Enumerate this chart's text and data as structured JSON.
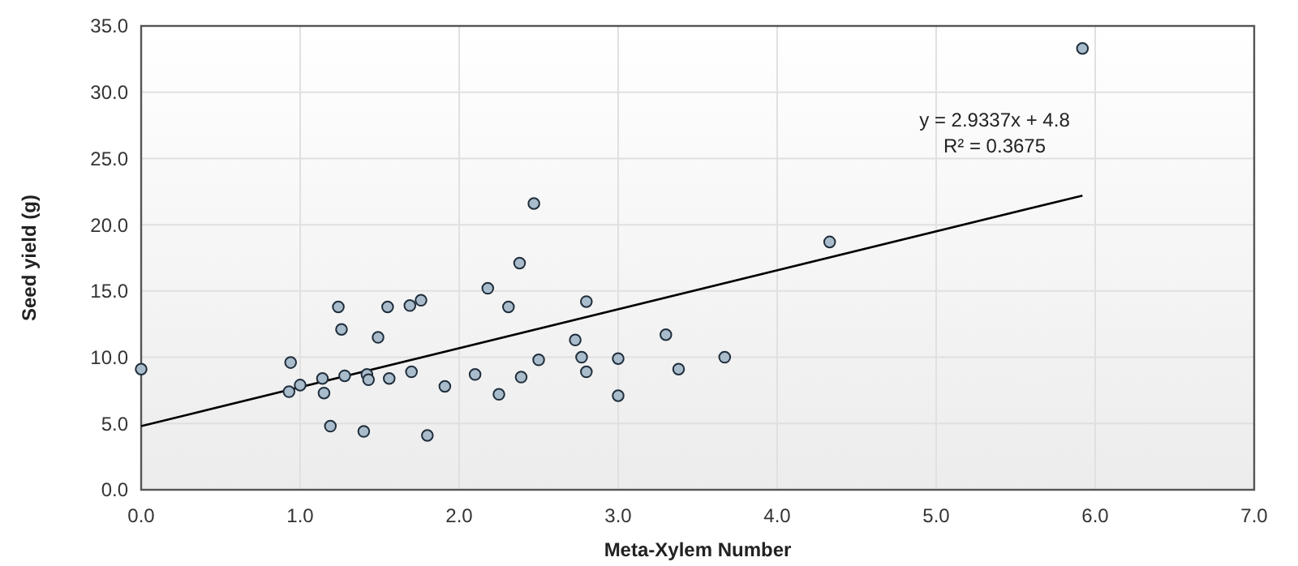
{
  "chart_data": {
    "type": "scatter",
    "xlabel": "Meta-Xylem Number",
    "ylabel": "Seed yield (g)",
    "xlim": [
      0,
      7
    ],
    "ylim": [
      0,
      35
    ],
    "xticks": [
      {
        "value": 0,
        "label": "0.0"
      },
      {
        "value": 1,
        "label": "1.0"
      },
      {
        "value": 2,
        "label": "2.0"
      },
      {
        "value": 3,
        "label": "3.0"
      },
      {
        "value": 4,
        "label": "4.0"
      },
      {
        "value": 5,
        "label": "5.0"
      },
      {
        "value": 6,
        "label": "6.0"
      },
      {
        "value": 7,
        "label": "7.0"
      }
    ],
    "yticks": [
      {
        "value": 0,
        "label": "0.0"
      },
      {
        "value": 5,
        "label": "5.0"
      },
      {
        "value": 10,
        "label": "10.0"
      },
      {
        "value": 15,
        "label": "15.0"
      },
      {
        "value": 20,
        "label": "20.0"
      },
      {
        "value": 25,
        "label": "25.0"
      },
      {
        "value": 30,
        "label": "30.0"
      },
      {
        "value": 35,
        "label": "35.0"
      }
    ],
    "grid": true,
    "series": [
      {
        "marker": "circle",
        "color": "#a9bccc",
        "x": [
          0,
          0.94,
          0.93,
          1.0,
          1.14,
          1.15,
          1.19,
          1.24,
          1.26,
          1.28,
          1.4,
          1.42,
          1.43,
          1.49,
          1.55,
          1.56,
          1.69,
          1.7,
          1.76,
          1.8,
          1.91,
          2.1,
          2.18,
          2.25,
          2.31,
          2.38,
          2.39,
          2.47,
          2.5,
          2.73,
          2.77,
          2.8,
          2.8,
          3.0,
          3.0,
          3.3,
          3.38,
          3.67,
          4.33,
          5.92
        ],
        "values": [
          9.1,
          9.6,
          7.4,
          7.9,
          8.4,
          7.3,
          4.8,
          13.8,
          12.1,
          8.6,
          4.4,
          8.7,
          8.3,
          11.5,
          13.8,
          8.4,
          13.9,
          8.9,
          14.3,
          4.1,
          7.8,
          8.7,
          15.2,
          7.2,
          13.8,
          17.1,
          8.5,
          21.6,
          9.8,
          11.3,
          10.0,
          14.2,
          8.9,
          9.9,
          7.1,
          11.7,
          9.1,
          10.0,
          18.7,
          33.3
        ]
      },
      {
        "type": "line",
        "color": "#000000",
        "x": [
          0,
          5.92
        ],
        "values": [
          4.8,
          22.2
        ]
      }
    ],
    "annotations": [
      "y = 2.9337x + 4.8",
      "R² = 0.3675"
    ]
  }
}
